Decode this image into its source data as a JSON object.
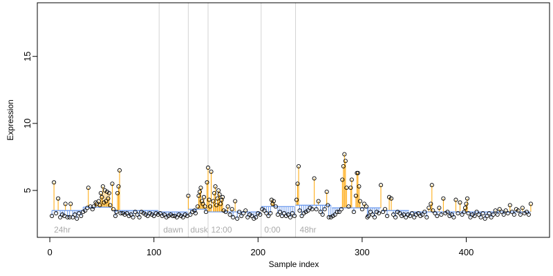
{
  "chart_data": {
    "type": "scatter",
    "xlabel": "Sample index",
    "ylabel": "Expression",
    "xlim": [
      -12,
      480
    ],
    "ylim": [
      1.5,
      19
    ],
    "x_ticks": [
      0,
      100,
      200,
      300,
      400
    ],
    "y_ticks": [
      5,
      10,
      15
    ],
    "phase_boundaries": [
      105,
      133,
      152,
      203,
      236
    ],
    "phase_labels": [
      {
        "text": "24hr",
        "x": 2
      },
      {
        "text": "dawn",
        "x": 107
      },
      {
        "text": "dusk",
        "x": 133
      },
      {
        "text": "12:00",
        "x": 153
      },
      {
        "text": "0:00",
        "x": 204
      },
      {
        "text": "48hr",
        "x": 238
      }
    ],
    "baseline_segments": [
      {
        "x": [
          2,
          31
        ],
        "y": 3.5
      },
      {
        "x": [
          32,
          59
        ],
        "y": 3.75
      },
      {
        "x": [
          60,
          104
        ],
        "y": 3.5
      },
      {
        "x": [
          105,
          132
        ],
        "y": 3.4
      },
      {
        "x": [
          133,
          151
        ],
        "y": 3.6
      },
      {
        "x": [
          152,
          202
        ],
        "y": 3.4
      },
      {
        "x": [
          203,
          235
        ],
        "y": 3.8
      },
      {
        "x": [
          236,
          270
        ],
        "y": 3.9
      },
      {
        "x": [
          271,
          318
        ],
        "y": 3.7
      },
      {
        "x": [
          319,
          345
        ],
        "y": 3.5
      },
      {
        "x": [
          346,
          462
        ],
        "y": 3.4
      }
    ],
    "points": [
      [
        2,
        3.1
      ],
      [
        4,
        5.6
      ],
      [
        6,
        3.3
      ],
      [
        8,
        4.4
      ],
      [
        10,
        3.0
      ],
      [
        12,
        3.2
      ],
      [
        14,
        3.1
      ],
      [
        15,
        4.0
      ],
      [
        17,
        3.0
      ],
      [
        19,
        3.0
      ],
      [
        20,
        4.0
      ],
      [
        22,
        3.0
      ],
      [
        24,
        3.2
      ],
      [
        26,
        2.9
      ],
      [
        28,
        3.3
      ],
      [
        30,
        3.1
      ],
      [
        32,
        3.4
      ],
      [
        34,
        3.5
      ],
      [
        36,
        3.7
      ],
      [
        37,
        5.2
      ],
      [
        39,
        3.8
      ],
      [
        41,
        3.6
      ],
      [
        42,
        3.8
      ],
      [
        44,
        4.1
      ],
      [
        45,
        4.0
      ],
      [
        47,
        4.2
      ],
      [
        48,
        3.9
      ],
      [
        49,
        4.8
      ],
      [
        50,
        4.5
      ],
      [
        51,
        5.3
      ],
      [
        52,
        4.1
      ],
      [
        53,
        5.0
      ],
      [
        54,
        4.2
      ],
      [
        55,
        4.9
      ],
      [
        56,
        4.4
      ],
      [
        57,
        4.8
      ],
      [
        58,
        3.9
      ],
      [
        60,
        5.5
      ],
      [
        61,
        3.6
      ],
      [
        63,
        3.1
      ],
      [
        64,
        3.4
      ],
      [
        65,
        4.8
      ],
      [
        66,
        5.3
      ],
      [
        67,
        6.5
      ],
      [
        68,
        3.3
      ],
      [
        70,
        3.3
      ],
      [
        72,
        3.2
      ],
      [
        74,
        3.3
      ],
      [
        76,
        3.1
      ],
      [
        78,
        3.2
      ],
      [
        80,
        3.0
      ],
      [
        82,
        3.4
      ],
      [
        84,
        3.2
      ],
      [
        86,
        3.0
      ],
      [
        88,
        3.4
      ],
      [
        90,
        3.3
      ],
      [
        92,
        3.2
      ],
      [
        94,
        3.1
      ],
      [
        96,
        3.3
      ],
      [
        98,
        3.2
      ],
      [
        100,
        3.1
      ],
      [
        102,
        3.3
      ],
      [
        104,
        3.2
      ],
      [
        106,
        3.3
      ],
      [
        108,
        3.1
      ],
      [
        110,
        3.2
      ],
      [
        112,
        3.0
      ],
      [
        114,
        3.1
      ],
      [
        116,
        3.2
      ],
      [
        118,
        3.1
      ],
      [
        120,
        3.1
      ],
      [
        122,
        3.0
      ],
      [
        124,
        3.2
      ],
      [
        126,
        3.1
      ],
      [
        128,
        3.0
      ],
      [
        130,
        3.2
      ],
      [
        132,
        3.1
      ],
      [
        133,
        4.6
      ],
      [
        135,
        3.2
      ],
      [
        137,
        3.4
      ],
      [
        139,
        3.5
      ],
      [
        140,
        3.3
      ],
      [
        142,
        3.8
      ],
      [
        143,
        4.6
      ],
      [
        144,
        4.9
      ],
      [
        145,
        5.2
      ],
      [
        146,
        4.2
      ],
      [
        147,
        4.0
      ],
      [
        148,
        4.5
      ],
      [
        149,
        3.8
      ],
      [
        150,
        3.4
      ],
      [
        151,
        5.6
      ],
      [
        152,
        6.7
      ],
      [
        153,
        4.3
      ],
      [
        154,
        3.8
      ],
      [
        155,
        6.4
      ],
      [
        157,
        4.2
      ],
      [
        158,
        4.8
      ],
      [
        159,
        5.3
      ],
      [
        160,
        3.9
      ],
      [
        161,
        4.4
      ],
      [
        162,
        5.0
      ],
      [
        163,
        4.7
      ],
      [
        164,
        4.0
      ],
      [
        165,
        4.3
      ],
      [
        166,
        4.5
      ],
      [
        167,
        3.5
      ],
      [
        169,
        3.4
      ],
      [
        171,
        3.8
      ],
      [
        173,
        3.2
      ],
      [
        175,
        3.6
      ],
      [
        176,
        3.0
      ],
      [
        178,
        4.2
      ],
      [
        180,
        2.9
      ],
      [
        182,
        3.4
      ],
      [
        184,
        3.1
      ],
      [
        186,
        3.3
      ],
      [
        188,
        3.5
      ],
      [
        190,
        3.0
      ],
      [
        192,
        3.2
      ],
      [
        194,
        3.1
      ],
      [
        196,
        2.9
      ],
      [
        198,
        3.0
      ],
      [
        200,
        3.3
      ],
      [
        202,
        3.2
      ],
      [
        204,
        3.6
      ],
      [
        206,
        3.5
      ],
      [
        208,
        3.3
      ],
      [
        210,
        3.1
      ],
      [
        212,
        3.3
      ],
      [
        213,
        4.3
      ],
      [
        214,
        4.0
      ],
      [
        215,
        4.2
      ],
      [
        217,
        3.8
      ],
      [
        219,
        3.2
      ],
      [
        221,
        3.4
      ],
      [
        223,
        3.1
      ],
      [
        225,
        3.3
      ],
      [
        227,
        3.1
      ],
      [
        229,
        3.2
      ],
      [
        231,
        3.0
      ],
      [
        233,
        3.3
      ],
      [
        235,
        3.1
      ],
      [
        237,
        4.3
      ],
      [
        238,
        5.5
      ],
      [
        239,
        6.8
      ],
      [
        240,
        3.5
      ],
      [
        242,
        3.1
      ],
      [
        244,
        3.3
      ],
      [
        246,
        3.4
      ],
      [
        248,
        3.5
      ],
      [
        250,
        3.7
      ],
      [
        252,
        3.6
      ],
      [
        254,
        5.9
      ],
      [
        256,
        3.6
      ],
      [
        258,
        4.2
      ],
      [
        260,
        3.4
      ],
      [
        262,
        3.2
      ],
      [
        264,
        3.6
      ],
      [
        266,
        4.9
      ],
      [
        267,
        3.9
      ],
      [
        268,
        3.0
      ],
      [
        270,
        3.0
      ],
      [
        272,
        3.1
      ],
      [
        274,
        3.2
      ],
      [
        276,
        3.4
      ],
      [
        278,
        3.4
      ],
      [
        280,
        3.6
      ],
      [
        281,
        5.8
      ],
      [
        282,
        6.8
      ],
      [
        283,
        7.7
      ],
      [
        284,
        7.2
      ],
      [
        285,
        5.2
      ],
      [
        287,
        3.8
      ],
      [
        289,
        5.2
      ],
      [
        290,
        5.8
      ],
      [
        292,
        3.4
      ],
      [
        294,
        4.6
      ],
      [
        295,
        6.3
      ],
      [
        296,
        6.3
      ],
      [
        297,
        5.3
      ],
      [
        298,
        4.2
      ],
      [
        300,
        3.6
      ],
      [
        302,
        4.0
      ],
      [
        304,
        3.8
      ],
      [
        305,
        3.0
      ],
      [
        306,
        3.1
      ],
      [
        308,
        3.4
      ],
      [
        310,
        3.2
      ],
      [
        312,
        3.0
      ],
      [
        314,
        3.4
      ],
      [
        316,
        3.3
      ],
      [
        318,
        5.4
      ],
      [
        320,
        3.4
      ],
      [
        322,
        3.6
      ],
      [
        324,
        3.1
      ],
      [
        326,
        4.5
      ],
      [
        328,
        4.4
      ],
      [
        330,
        3.2
      ],
      [
        332,
        3.0
      ],
      [
        334,
        3.4
      ],
      [
        336,
        3.3
      ],
      [
        338,
        3.1
      ],
      [
        340,
        3.2
      ],
      [
        342,
        3.0
      ],
      [
        344,
        3.2
      ],
      [
        346,
        3.1
      ],
      [
        348,
        3.3
      ],
      [
        350,
        3.0
      ],
      [
        352,
        3.2
      ],
      [
        354,
        3.3
      ],
      [
        356,
        3.1
      ],
      [
        358,
        3.2
      ],
      [
        360,
        3.4
      ],
      [
        362,
        3.0
      ],
      [
        364,
        3.7
      ],
      [
        366,
        4.0
      ],
      [
        367,
        5.4
      ],
      [
        368,
        3.5
      ],
      [
        370,
        3.3
      ],
      [
        372,
        3.1
      ],
      [
        374,
        3.7
      ],
      [
        376,
        3.2
      ],
      [
        378,
        4.4
      ],
      [
        380,
        3.3
      ],
      [
        382,
        3.4
      ],
      [
        384,
        3.1
      ],
      [
        386,
        3.2
      ],
      [
        388,
        3.0
      ],
      [
        390,
        4.3
      ],
      [
        392,
        3.3
      ],
      [
        394,
        4.1
      ],
      [
        396,
        3.2
      ],
      [
        398,
        3.4
      ],
      [
        399,
        3.7
      ],
      [
        400,
        4.0
      ],
      [
        401,
        4.4
      ],
      [
        402,
        3.3
      ],
      [
        404,
        3.0
      ],
      [
        406,
        3.2
      ],
      [
        408,
        3.1
      ],
      [
        410,
        3.4
      ],
      [
        412,
        3.2
      ],
      [
        414,
        3.0
      ],
      [
        416,
        3.3
      ],
      [
        418,
        2.9
      ],
      [
        420,
        3.1
      ],
      [
        422,
        3.3
      ],
      [
        424,
        3.0
      ],
      [
        426,
        3.2
      ],
      [
        428,
        3.5
      ],
      [
        430,
        3.2
      ],
      [
        432,
        3.6
      ],
      [
        434,
        3.4
      ],
      [
        436,
        3.2
      ],
      [
        438,
        3.5
      ],
      [
        440,
        3.3
      ],
      [
        442,
        3.9
      ],
      [
        444,
        3.4
      ],
      [
        446,
        3.2
      ],
      [
        448,
        3.6
      ],
      [
        450,
        3.5
      ],
      [
        452,
        3.2
      ],
      [
        454,
        3.7
      ],
      [
        456,
        3.3
      ],
      [
        458,
        3.4
      ],
      [
        460,
        3.2
      ],
      [
        462,
        4.0
      ]
    ],
    "colors": {
      "stem_up": "#ffa500",
      "stem_down": "#6495ed",
      "point_stroke": "#000000",
      "grid_vertical": "#d3d3d3",
      "phase_text": "#aaaaaa",
      "axis": "#000000"
    }
  }
}
